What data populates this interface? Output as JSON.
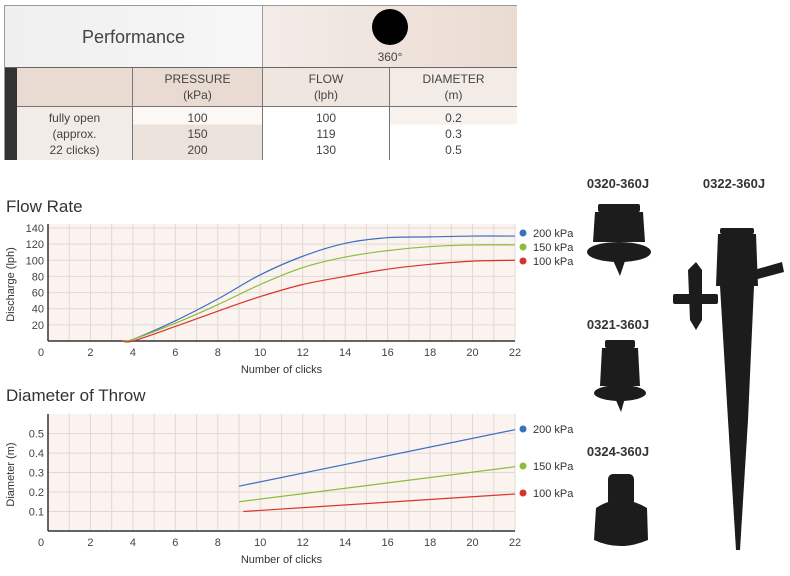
{
  "performance_table": {
    "title": "Performance",
    "pattern_label": "360°",
    "pattern_icon": "full-circle-icon",
    "headers": [
      {
        "line1": "PRESSURE",
        "line2": "(kPa)"
      },
      {
        "line1": "FLOW",
        "line2": "(lph)"
      },
      {
        "line1": "DIAMETER",
        "line2": "(m)"
      }
    ],
    "row_label": [
      "fully open",
      "(approx.",
      "22 clicks)"
    ],
    "pressure": [
      "100",
      "150",
      "200"
    ],
    "flow": [
      "100",
      "119",
      "130"
    ],
    "diameter": [
      "0.2",
      "0.3",
      "0.5"
    ]
  },
  "chart_data": [
    {
      "type": "line",
      "title": "Flow Rate",
      "xlabel": "Number of clicks",
      "ylabel": "Discharge (lph)",
      "xlim": [
        0,
        22
      ],
      "ylim": [
        0,
        140
      ],
      "xticks": [
        "0",
        "2",
        "4",
        "6",
        "8",
        "10",
        "12",
        "14",
        "16",
        "18",
        "20",
        "22"
      ],
      "yticks": [
        "20",
        "40",
        "60",
        "80",
        "100",
        "120",
        "140"
      ],
      "grid": true,
      "legend": "right",
      "series": [
        {
          "name": "200 kPa",
          "color": "#3b6fc0",
          "x": [
            3.5,
            4,
            6,
            8,
            10,
            12,
            14,
            16,
            18,
            20,
            22
          ],
          "y": [
            0,
            2,
            25,
            52,
            82,
            105,
            121,
            128,
            129,
            130,
            130
          ]
        },
        {
          "name": "150 kPa",
          "color": "#8dbb3c",
          "x": [
            3.5,
            4,
            6,
            8,
            10,
            12,
            14,
            16,
            18,
            20,
            22
          ],
          "y": [
            0,
            2,
            22,
            45,
            70,
            91,
            104,
            112,
            117,
            119,
            119
          ]
        },
        {
          "name": "100 kPa",
          "color": "#d9342b",
          "x": [
            3.5,
            4,
            6,
            8,
            10,
            12,
            14,
            16,
            18,
            20,
            22
          ],
          "y": [
            0,
            0,
            18,
            37,
            55,
            70,
            80,
            89,
            95,
            99,
            100
          ]
        }
      ]
    },
    {
      "type": "line",
      "title": "Diameter of Throw",
      "xlabel": "Number of clicks",
      "ylabel": "Diameter (m)",
      "xlim": [
        0,
        22
      ],
      "ylim": [
        0,
        0.58
      ],
      "xticks": [
        "0",
        "2",
        "4",
        "6",
        "8",
        "10",
        "12",
        "14",
        "16",
        "18",
        "20",
        "22"
      ],
      "yticks": [
        "0.1",
        "0.2",
        "0.3",
        "0.4",
        "0.5"
      ],
      "grid": true,
      "legend": "right",
      "series": [
        {
          "name": "200 kPa",
          "color": "#3b6fc0",
          "x": [
            9,
            22
          ],
          "y": [
            0.23,
            0.52
          ]
        },
        {
          "name": "150 kPa",
          "color": "#8dbb3c",
          "x": [
            9,
            22
          ],
          "y": [
            0.15,
            0.33
          ]
        },
        {
          "name": "100 kPa",
          "color": "#d9342b",
          "x": [
            9.2,
            22
          ],
          "y": [
            0.1,
            0.19
          ]
        }
      ]
    }
  ],
  "products": [
    {
      "code": "0320-360J"
    },
    {
      "code": "0322-360J"
    },
    {
      "code": "0321-360J"
    },
    {
      "code": "0324-360J"
    }
  ]
}
